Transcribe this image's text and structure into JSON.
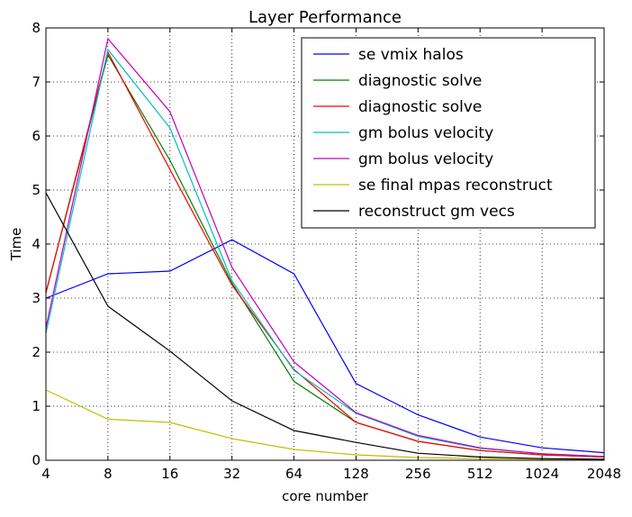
{
  "chart_data": {
    "type": "line",
    "title": "Layer Performance",
    "xlabel": "core number",
    "ylabel": "Time",
    "x_scale": "log2",
    "categories": [
      "4",
      "8",
      "16",
      "32",
      "64",
      "128",
      "256",
      "512",
      "1024",
      "2048"
    ],
    "x": [
      4,
      8,
      16,
      32,
      64,
      128,
      256,
      512,
      1024,
      2048
    ],
    "ylim": [
      0,
      8
    ],
    "yticks": [
      "0",
      "1",
      "2",
      "3",
      "4",
      "5",
      "6",
      "7",
      "8"
    ],
    "grid": true,
    "legend_position": "top-right",
    "series": [
      {
        "name": "se vmix halos",
        "color": "#0000ff",
        "values": [
          3.0,
          3.45,
          3.5,
          4.08,
          3.45,
          1.42,
          0.84,
          0.43,
          0.23,
          0.14
        ]
      },
      {
        "name": "diagnostic solve",
        "color": "#008000",
        "values": [
          3.1,
          7.5,
          5.55,
          3.28,
          1.46,
          0.7,
          0.35,
          0.18,
          0.1,
          0.06
        ]
      },
      {
        "name": "diagnostic solve",
        "color": "#ff0000",
        "values": [
          3.1,
          7.55,
          5.38,
          3.24,
          1.68,
          0.7,
          0.35,
          0.18,
          0.1,
          0.06
        ]
      },
      {
        "name": "gm bolus velocity",
        "color": "#00bfbf",
        "values": [
          2.35,
          7.6,
          6.15,
          3.32,
          1.66,
          0.87,
          0.44,
          0.22,
          0.12,
          0.07
        ]
      },
      {
        "name": "gm bolus velocity",
        "color": "#bf00bf",
        "values": [
          2.45,
          7.8,
          6.45,
          3.57,
          1.82,
          0.88,
          0.46,
          0.23,
          0.12,
          0.07
        ]
      },
      {
        "name": "se final mpas reconstruct",
        "color": "#bfbf00",
        "values": [
          1.3,
          0.76,
          0.7,
          0.4,
          0.2,
          0.1,
          0.05,
          0.03,
          0.02,
          0.01
        ]
      },
      {
        "name": "reconstruct gm vecs",
        "color": "#000000",
        "values": [
          4.95,
          2.85,
          2.02,
          1.1,
          0.55,
          0.33,
          0.13,
          0.06,
          0.03,
          0.02
        ]
      }
    ]
  }
}
